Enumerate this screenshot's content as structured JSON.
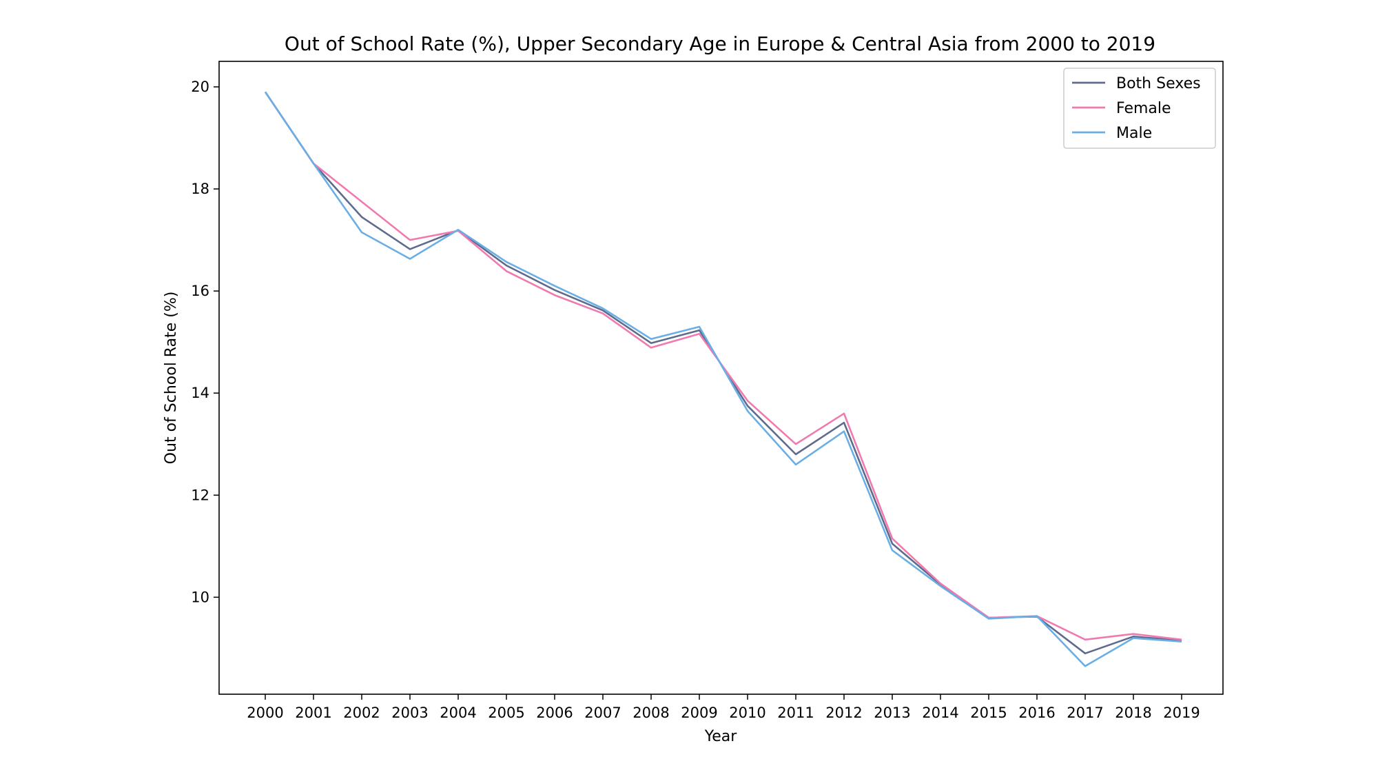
{
  "chart_data": {
    "type": "line",
    "title": "Out of School Rate (%), Upper Secondary Age in Europe & Central Asia from 2000 to 2019",
    "xlabel": "Year",
    "ylabel": "Out of School Rate (%)",
    "x": [
      "2000",
      "2001",
      "2002",
      "2003",
      "2004",
      "2005",
      "2006",
      "2007",
      "2008",
      "2009",
      "2010",
      "2011",
      "2012",
      "2013",
      "2014",
      "2015",
      "2016",
      "2017",
      "2018",
      "2019"
    ],
    "yticks": [
      10,
      12,
      14,
      16,
      18,
      20
    ],
    "ylim": [
      8.1,
      20.5
    ],
    "grid": false,
    "legend_position": "top-right",
    "series": [
      {
        "name": "Both Sexes",
        "color": "#5f6b8c",
        "values": [
          19.9,
          18.5,
          17.45,
          16.82,
          17.19,
          16.5,
          16.02,
          15.62,
          14.98,
          15.23,
          13.75,
          12.8,
          13.42,
          11.05,
          10.25,
          9.6,
          9.62,
          8.9,
          9.23,
          9.15
        ]
      },
      {
        "name": "Female",
        "color": "#f07aaf",
        "values": [
          19.9,
          18.5,
          17.75,
          17.0,
          17.18,
          16.39,
          15.92,
          15.56,
          14.89,
          15.16,
          13.85,
          13.0,
          13.6,
          11.15,
          10.27,
          9.6,
          9.63,
          9.17,
          9.28,
          9.17
        ]
      },
      {
        "name": "Male",
        "color": "#6aaee6",
        "values": [
          19.9,
          18.5,
          17.15,
          16.63,
          17.2,
          16.57,
          16.1,
          15.66,
          15.06,
          15.3,
          13.65,
          12.6,
          13.25,
          10.92,
          10.22,
          9.58,
          9.63,
          8.65,
          9.2,
          9.13
        ]
      }
    ]
  }
}
